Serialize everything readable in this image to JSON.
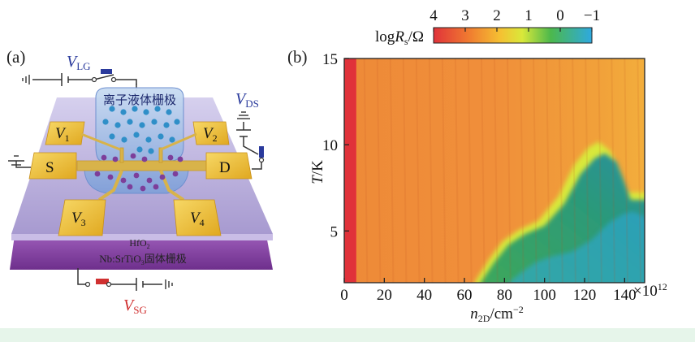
{
  "panel_a": {
    "letter": "(a)",
    "vlg": {
      "main": "V",
      "sub": "LG"
    },
    "vds": {
      "main": "V",
      "sub": "DS"
    },
    "vsg": {
      "main": "V",
      "sub": "SG"
    },
    "ionic_gate_label": "离子液体栅极",
    "v1": {
      "main": "V",
      "sub": "1"
    },
    "v2": {
      "main": "V",
      "sub": "2"
    },
    "v3": {
      "main": "V",
      "sub": "3"
    },
    "v4": {
      "main": "V",
      "sub": "4"
    },
    "source": "S",
    "drain": "D",
    "dielectric": {
      "main": "HfO",
      "sub": "2"
    },
    "substrate": {
      "pre": "Nb:SrTiO",
      "sub": "3",
      "post": "固体栅极"
    },
    "colors": {
      "vlg_label": "#2a3a9c",
      "vds_label": "#2a3a9c",
      "vsg_label": "#d03030",
      "pad": "#f0c030",
      "gate_liquid": "#8fb0e0",
      "dot_blue": "#2f8fc8",
      "dot_purple": "#7d3e9a",
      "substrate": "#8a4aa6",
      "film": "#b8aad8"
    }
  },
  "panel_b": {
    "letter": "(b)",
    "colorbar": {
      "label_pre": "log",
      "label_R": "R",
      "label_sub": "s",
      "label_post": "/Ω",
      "ticks": [
        "4",
        "3",
        "2",
        "1",
        "0",
        "−1"
      ],
      "colors": [
        "#e0323a",
        "#f07a30",
        "#f5c032",
        "#d9e83a",
        "#4cb84c",
        "#2ea9e0"
      ]
    },
    "y_axis": {
      "label_T": "T",
      "label_rest": "/K",
      "ticks": [
        "5",
        "10",
        "15"
      ]
    },
    "x_axis": {
      "label_n": "n",
      "label_sub": "2D",
      "label_mid": "/cm",
      "label_sup": "−2",
      "ticks": [
        "0",
        "20",
        "40",
        "60",
        "80",
        "100",
        "120",
        "140"
      ],
      "multiplier": "×10",
      "multiplier_exp": "12"
    }
  },
  "chart_data": {
    "type": "heatmap",
    "title": "",
    "xlabel": "n2D/cm−2",
    "xscale_note": "×10^12",
    "ylabel": "T/K",
    "xlim": [
      0,
      150
    ],
    "ylim": [
      2,
      15
    ],
    "x_ticks": [
      0,
      20,
      40,
      60,
      80,
      100,
      120,
      140
    ],
    "y_ticks": [
      5,
      10,
      15
    ],
    "colorbar": {
      "label": "logRs/Ω",
      "range": [
        4,
        -1
      ],
      "ticks": [
        4,
        3,
        2,
        1,
        0,
        -1
      ]
    },
    "superconducting_boundary": {
      "description": "approximate contour where logRs drops toward -1 (onset temperature vs carrier density)",
      "n2D": [
        68,
        75,
        82,
        90,
        100,
        110,
        118,
        125,
        130,
        136,
        140,
        143
      ],
      "T": [
        2,
        3.2,
        4.2,
        4.8,
        5.3,
        6.6,
        8.3,
        9.2,
        9.5,
        9.0,
        7.8,
        6.8
      ]
    },
    "regions": [
      {
        "n2D_range": [
          0,
          6
        ],
        "T_range": [
          2,
          15
        ],
        "logRs": 4
      },
      {
        "n2D_range": [
          6,
          150
        ],
        "T_range": [
          2,
          15
        ],
        "logRs": 2.8,
        "note": "normal state background"
      }
    ]
  }
}
